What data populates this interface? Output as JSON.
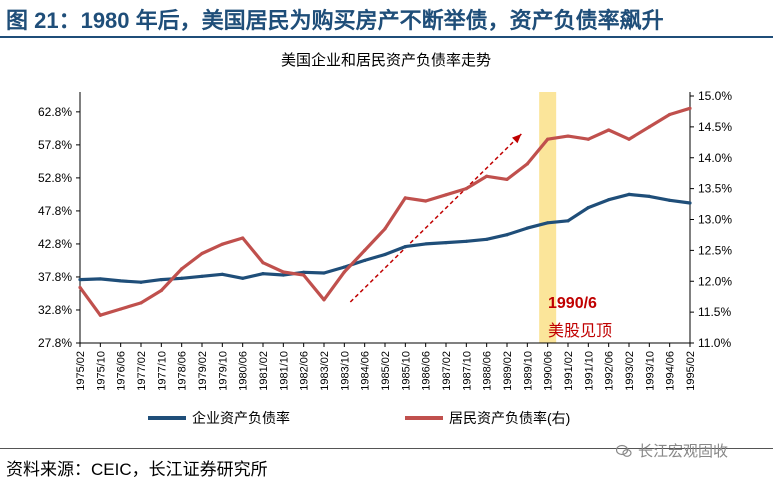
{
  "header": {
    "title": "图 21：1980 年后，美国居民为购买房产不断举债，资产负债率飙升"
  },
  "footer": {
    "source": "资料来源：CEIC，长江证券研究所",
    "watermark": "长江宏观固收"
  },
  "colors": {
    "corporate": "#1f4e79",
    "household": "#c0504d",
    "highlight": "#fbe59a",
    "arrow": "#c00000",
    "title": "#1f4e79"
  },
  "chart_data": {
    "type": "line",
    "title": "美国企业和居民资产负债率走势",
    "x": [
      "1975/02",
      "1975/10",
      "1976/06",
      "1977/02",
      "1977/10",
      "1978/06",
      "1979/02",
      "1979/10",
      "1980/06",
      "1981/02",
      "1981/10",
      "1982/06",
      "1983/02",
      "1983/10",
      "1984/06",
      "1985/02",
      "1985/10",
      "1986/06",
      "1987/02",
      "1987/10",
      "1988/06",
      "1989/02",
      "1989/10",
      "1990/06",
      "1991/02",
      "1991/10",
      "1992/06",
      "1993/02",
      "1993/10",
      "1994/06",
      "1995/02"
    ],
    "y_left": {
      "ticks": [
        "62.8%",
        "57.8%",
        "52.8%",
        "47.8%",
        "42.8%",
        "37.8%",
        "32.8%",
        "27.8%"
      ],
      "ylim": [
        27.8,
        65.2
      ]
    },
    "y_right": {
      "ticks": [
        "15.0%",
        "14.5%",
        "14.0%",
        "13.5%",
        "13.0%",
        "12.5%",
        "12.0%",
        "11.5%",
        "11.0%"
      ],
      "ylim": [
        11.0,
        15.0
      ]
    },
    "series": [
      {
        "name": "企业资产负债率",
        "axis": "left",
        "values": [
          37.4,
          37.5,
          37.2,
          37.0,
          37.4,
          37.6,
          37.9,
          38.2,
          37.6,
          38.3,
          38.1,
          38.5,
          38.4,
          39.3,
          40.3,
          41.2,
          42.4,
          42.8,
          43.0,
          43.2,
          43.5,
          44.2,
          45.2,
          46.0,
          46.3,
          48.3,
          49.5,
          50.3,
          50.0,
          49.4,
          49.0
        ]
      },
      {
        "name": "居民资产负债率(右)",
        "axis": "right",
        "values": [
          11.9,
          11.45,
          11.55,
          11.65,
          11.85,
          12.2,
          12.45,
          12.6,
          12.7,
          12.3,
          12.15,
          12.1,
          11.7,
          12.15,
          12.5,
          12.85,
          13.35,
          13.3,
          13.4,
          13.5,
          13.7,
          13.65,
          13.9,
          14.3,
          14.35,
          14.3,
          14.45,
          14.3,
          14.5,
          14.7,
          14.8
        ]
      }
    ],
    "annotation": {
      "line1": "1990/6",
      "line2": "美股见顶",
      "highlight_x": "1990/06",
      "arrow_from": "1983/10",
      "arrow_to": "1989/10"
    }
  }
}
